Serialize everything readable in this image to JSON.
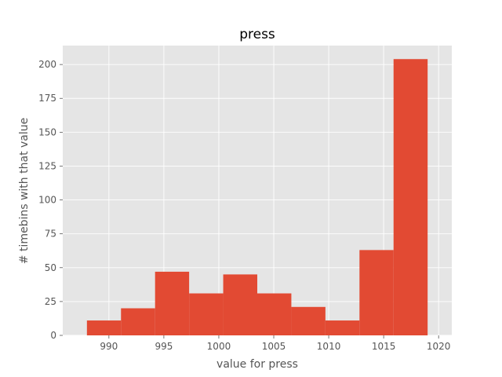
{
  "chart_data": {
    "type": "bar",
    "title": "press",
    "xlabel": "value for press",
    "ylabel": "# timebins with that value",
    "bin_edges": [
      988.0,
      991.1,
      994.2,
      997.3,
      1000.4,
      1003.5,
      1006.6,
      1009.7,
      1012.8,
      1015.9,
      1019.0
    ],
    "values": [
      11,
      20,
      47,
      31,
      45,
      31,
      21,
      11,
      63,
      204
    ],
    "xlim": [
      985.8,
      1021.2
    ],
    "ylim": [
      0,
      214
    ],
    "xticks": [
      990,
      995,
      1000,
      1005,
      1010,
      1015,
      1020
    ],
    "yticks": [
      0,
      25,
      50,
      75,
      100,
      125,
      150,
      175,
      200
    ],
    "grid": true,
    "colors": {
      "bar": "#E24A33",
      "plot_background": "#E5E5E5",
      "grid": "#FFFFFF",
      "tick": "#555555"
    }
  }
}
